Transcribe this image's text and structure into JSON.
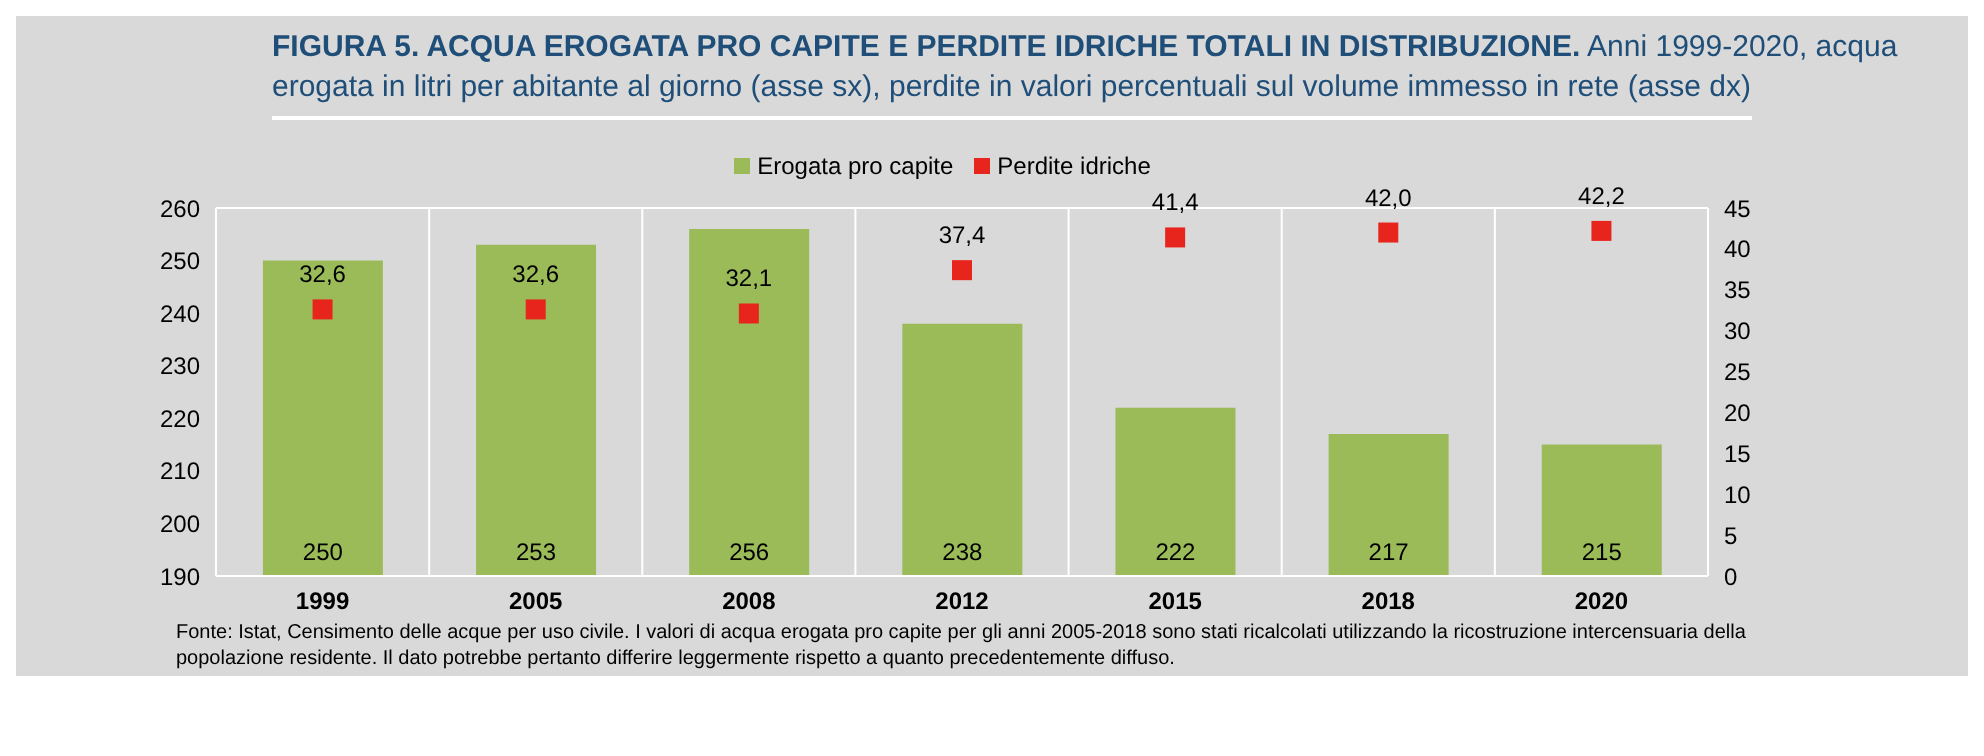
{
  "chart_data": {
    "type": "bar",
    "title": "FIGURA 5. ACQUA EROGATA PRO CAPITE E PERDITE IDRICHE TOTALI IN DISTRIBUZIONE.",
    "subtitle": "Anni 1999-2020, acqua erogata in litri per abitante al giorno (asse sx), perdite in valori percentuali sul volume immesso in rete (asse dx)",
    "categories": [
      "1999",
      "2005",
      "2008",
      "2012",
      "2015",
      "2018",
      "2020"
    ],
    "series": [
      {
        "name": "Erogata pro capite",
        "color": "#9bbb59",
        "values": [
          250,
          253,
          256,
          238,
          222,
          217,
          215
        ]
      },
      {
        "name": "Perdite idriche",
        "type": "scatter",
        "axis": "y2",
        "color": "#e8251c",
        "marker": "square",
        "values": [
          32.6,
          32.6,
          32.1,
          37.4,
          41.4,
          42.0,
          42.2
        ],
        "value_labels": [
          "32,6",
          "32,6",
          "32,1",
          "37,4",
          "41,4",
          "42,0",
          "42,2"
        ]
      }
    ],
    "ylim": [
      190,
      260
    ],
    "yticks": [
      190,
      200,
      210,
      220,
      230,
      240,
      250,
      260
    ],
    "y2lim": [
      0,
      45
    ],
    "y2ticks": [
      0,
      5,
      10,
      15,
      20,
      25,
      30,
      35,
      40,
      45
    ],
    "grid": true,
    "legend": "top",
    "data_labels": true,
    "annotations": [
      "Fonte: Istat, Censimento delle acque per uso civile. I valori di acqua erogata pro capite per gli anni 2005-2018 sono stati ricalcolati utilizzando la ricostruzione intercensuaria della popolazione residente. Il dato potrebbe pertanto differire leggermente rispetto a quanto precedentemente diffuso."
    ]
  }
}
